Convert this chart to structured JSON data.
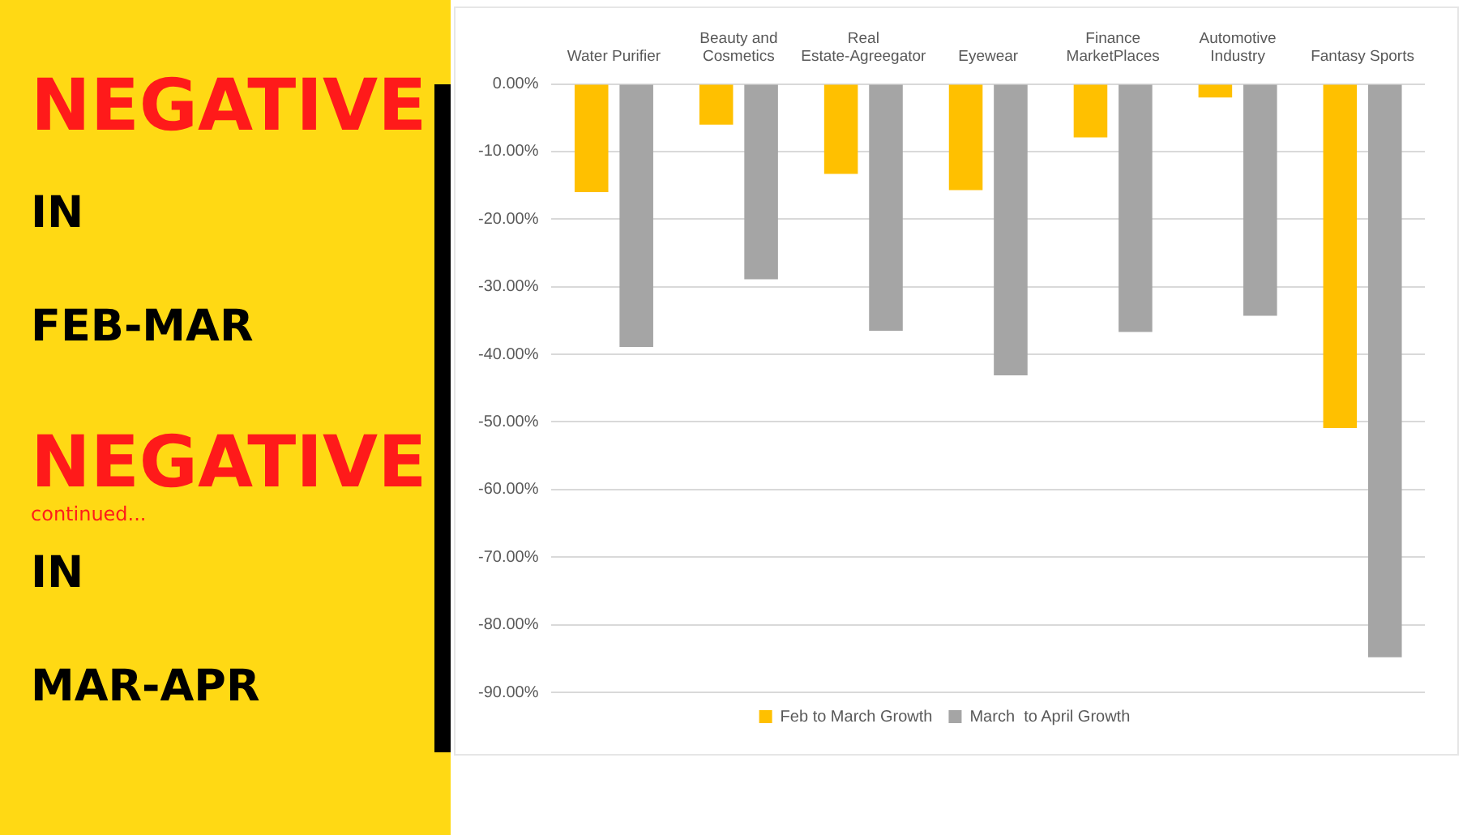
{
  "chart_data": {
    "type": "bar",
    "categories": [
      "Water Purifier",
      "Beauty and Cosmetics",
      "Real Estate-Agreegator",
      "Eyewear",
      "Finance MarketPlaces",
      "Automotive Industry",
      "Fantasy Sports"
    ],
    "series": [
      {
        "name": "Feb to March Growth",
        "color": "#ffc000",
        "values": [
          -16,
          -6,
          -13.3,
          -15.7,
          -7.9,
          -2,
          -50.9
        ]
      },
      {
        "name": "March  to April Growth",
        "color": "#a5a5a5",
        "values": [
          -38.9,
          -28.9,
          -36.5,
          -43.1,
          -36.7,
          -34.3,
          -84.8
        ]
      }
    ],
    "ylim": [
      -90,
      0
    ],
    "yticks": [
      {
        "value": 0,
        "label": "0.00%"
      },
      {
        "value": -10,
        "label": "-10.00%"
      },
      {
        "value": -20,
        "label": "-20.00%"
      },
      {
        "value": -30,
        "label": "-30.00%"
      },
      {
        "value": -40,
        "label": "-40.00%"
      },
      {
        "value": -50,
        "label": "-50.00%"
      },
      {
        "value": -60,
        "label": "-60.00%"
      },
      {
        "value": -70,
        "label": "-70.00%"
      },
      {
        "value": -80,
        "label": "-80.00%"
      },
      {
        "value": -90,
        "label": "-90.00%"
      }
    ],
    "grid": "y",
    "legend": "bottom",
    "annotations": [
      "NEGATIVE",
      "IN",
      "FEB-MAR",
      "NEGATIVE",
      "continued...",
      "IN",
      "MAR-APR"
    ]
  }
}
